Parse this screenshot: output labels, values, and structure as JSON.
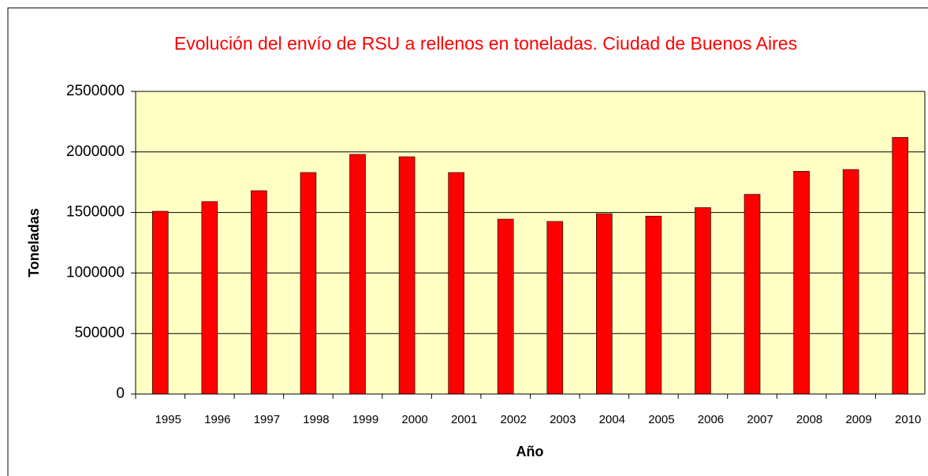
{
  "chart_data": {
    "type": "bar",
    "title": "Evolución del envío de RSU a rellenos en toneladas. Ciudad de Buenos Aires",
    "x_label": "Año",
    "y_label": "Toneladas",
    "categories": [
      "1995",
      "1996",
      "1997",
      "1998",
      "1999",
      "2000",
      "2001",
      "2002",
      "2003",
      "2004",
      "2005",
      "2006",
      "2007",
      "2008",
      "2009",
      "2010"
    ],
    "values": [
      1510000,
      1590000,
      1680000,
      1830000,
      1980000,
      1960000,
      1830000,
      1445000,
      1426000,
      1490000,
      1470000,
      1540000,
      1650000,
      1840000,
      1855000,
      2120000
    ],
    "color": "#ff0000",
    "ylim": [
      0,
      2500000
    ],
    "yticks": [
      0,
      500000,
      1000000,
      1500000,
      2000000,
      2500000
    ],
    "grid": true
  }
}
